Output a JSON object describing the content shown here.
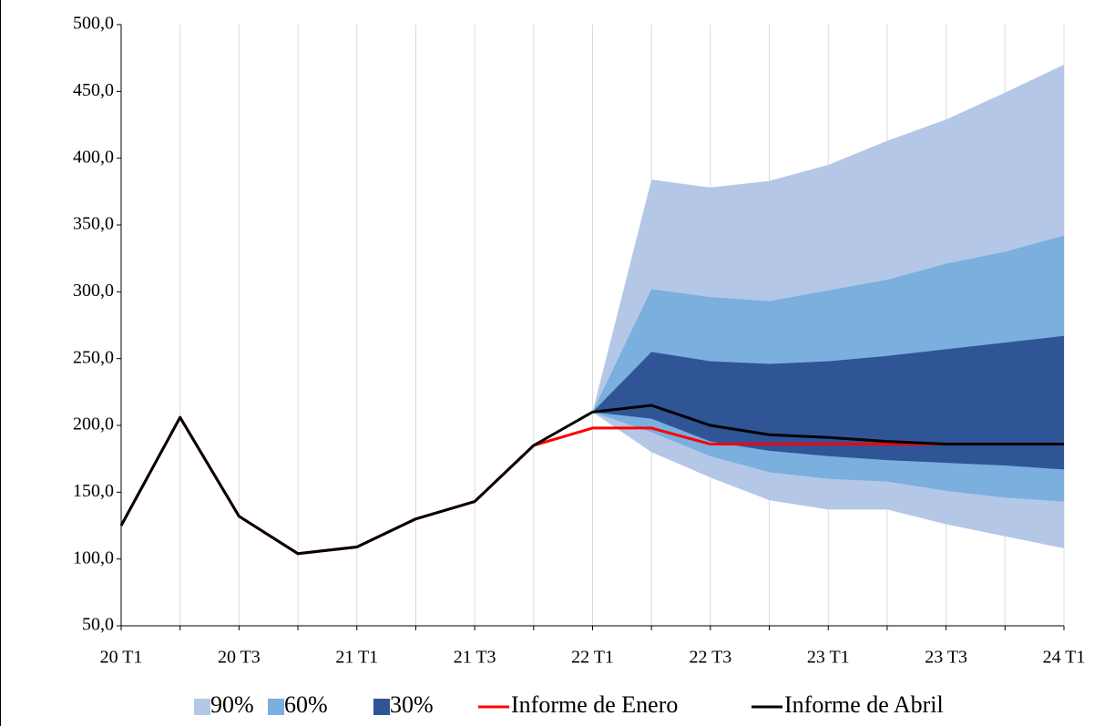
{
  "chart_data": {
    "type": "fan",
    "categories": [
      "20 T1",
      null,
      "20 T3",
      null,
      "21 T1",
      null,
      "21 T3",
      null,
      "22 T1",
      null,
      "22 T3",
      null,
      "23 T1",
      null,
      "23 T3",
      null,
      "24 T1"
    ],
    "ylim": [
      50,
      500
    ],
    "yticks": [
      {
        "value": 50,
        "label": "50,0"
      },
      {
        "value": 100,
        "label": "100,0"
      },
      {
        "value": 150,
        "label": "150,0"
      },
      {
        "value": 200,
        "label": "200,0"
      },
      {
        "value": 250,
        "label": "250,0"
      },
      {
        "value": 300,
        "label": "300,0"
      },
      {
        "value": 350,
        "label": "350,0"
      },
      {
        "value": 400,
        "label": "400,0"
      },
      {
        "value": 450,
        "label": "450,0"
      },
      {
        "value": 500,
        "label": "500,0"
      }
    ],
    "grid": true,
    "legend": "bottom",
    "series": [
      {
        "name": "90%",
        "color": "#b4c7e7",
        "low": [
          null,
          null,
          null,
          null,
          null,
          null,
          null,
          null,
          210,
          180,
          161,
          144,
          137,
          137,
          126,
          117,
          108
        ],
        "high": [
          null,
          null,
          null,
          null,
          null,
          null,
          null,
          null,
          210,
          384,
          378,
          383,
          395,
          413,
          429,
          449,
          470
        ]
      },
      {
        "name": "60%",
        "color": "#7aafde",
        "low": [
          null,
          null,
          null,
          null,
          null,
          null,
          null,
          null,
          210,
          195,
          177,
          165,
          160,
          158,
          151,
          146,
          143
        ],
        "high": [
          null,
          null,
          null,
          null,
          null,
          null,
          null,
          null,
          210,
          302,
          296,
          293,
          301,
          309,
          321,
          330,
          342
        ]
      },
      {
        "name": "30%",
        "color": "#2f5597",
        "low": [
          null,
          null,
          null,
          null,
          null,
          null,
          null,
          null,
          210,
          205,
          188,
          181,
          177,
          174,
          172,
          170,
          167
        ],
        "high": [
          null,
          null,
          null,
          null,
          null,
          null,
          null,
          null,
          210,
          255,
          248,
          246,
          248,
          252,
          257,
          262,
          267
        ]
      },
      {
        "name": "Informe de Enero",
        "color": "#ff0000",
        "values": [
          125,
          206,
          132,
          104,
          109,
          130,
          143,
          185,
          198,
          198,
          186,
          186,
          186,
          186,
          186,
          186,
          186
        ]
      },
      {
        "name": "Informe de Abril",
        "color": "#000000",
        "values": [
          125,
          206,
          132,
          104,
          109,
          130,
          143,
          185,
          210,
          215,
          200,
          193,
          191,
          188,
          186,
          186,
          186
        ]
      }
    ]
  }
}
